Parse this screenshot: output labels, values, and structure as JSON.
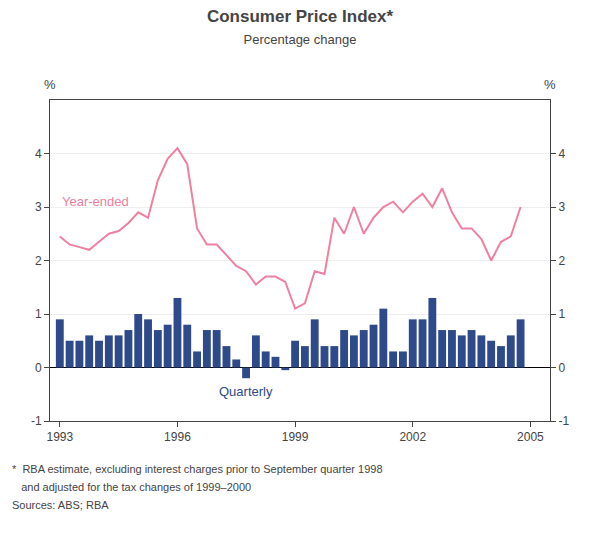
{
  "chart_data": {
    "type": "bar",
    "title": "Consumer Price Index*",
    "subtitle": "Percentage change",
    "ylabel": "%",
    "y2label": "%",
    "footnotes": [
      "*  RBA estimate, excluding interest charges prior to September quarter 1998",
      "   and adjusted for the tax changes of 1999–2000",
      "Sources: ABS; RBA"
    ],
    "x": [
      1993.0,
      1993.25,
      1993.5,
      1993.75,
      1994.0,
      1994.25,
      1994.5,
      1994.75,
      1995.0,
      1995.25,
      1995.5,
      1995.75,
      1996.0,
      1996.25,
      1996.5,
      1996.75,
      1997.0,
      1997.25,
      1997.5,
      1997.75,
      1998.0,
      1998.25,
      1998.5,
      1998.75,
      1999.0,
      1999.25,
      1999.5,
      1999.75,
      2000.0,
      2000.25,
      2000.5,
      2000.75,
      2001.0,
      2001.25,
      2001.5,
      2001.75,
      2002.0,
      2002.25,
      2002.5,
      2002.75,
      2003.0,
      2003.25,
      2003.5,
      2003.75,
      2004.0,
      2004.25,
      2004.5,
      2004.75
    ],
    "series": [
      {
        "name": "Quarterly",
        "type": "bar",
        "color": "#2e4a8a",
        "values": [
          0.9,
          0.5,
          0.5,
          0.6,
          0.5,
          0.6,
          0.6,
          0.7,
          1.0,
          0.9,
          0.7,
          0.8,
          1.3,
          0.8,
          0.3,
          0.7,
          0.7,
          0.4,
          0.15,
          -0.2,
          0.6,
          0.3,
          0.2,
          -0.05,
          0.5,
          0.4,
          0.9,
          0.4,
          0.4,
          0.7,
          0.6,
          0.7,
          0.8,
          1.1,
          0.3,
          0.3,
          0.9,
          0.9,
          1.3,
          0.7,
          0.7,
          0.6,
          0.7,
          0.6,
          0.5,
          0.4,
          0.6,
          0.9
        ]
      },
      {
        "name": "Year-ended",
        "type": "line",
        "color": "#f080a0",
        "values": [
          2.45,
          2.3,
          2.25,
          2.2,
          2.35,
          2.5,
          2.55,
          2.7,
          2.9,
          2.8,
          3.5,
          3.9,
          4.1,
          3.8,
          2.6,
          2.3,
          2.3,
          2.1,
          1.9,
          1.8,
          1.55,
          1.7,
          1.7,
          1.6,
          1.1,
          1.2,
          1.8,
          1.75,
          2.8,
          2.5,
          3.0,
          2.5,
          2.8,
          3.0,
          3.1,
          2.9,
          3.1,
          3.25,
          3.0,
          3.35,
          2.9,
          2.6,
          2.6,
          2.4,
          2.0,
          2.35,
          2.45,
          3.0
        ]
      }
    ],
    "xlim": [
      1992.75,
      2005.5
    ],
    "xticks": [
      1993,
      1996,
      1999,
      2002,
      2005
    ],
    "ylim": [
      -1,
      5
    ],
    "yticks": [
      -1,
      0,
      1,
      2,
      3,
      4
    ],
    "y2lim": [
      -1,
      5
    ],
    "y2ticks": [
      -1,
      0,
      1,
      2,
      3,
      4
    ],
    "grid": true
  }
}
